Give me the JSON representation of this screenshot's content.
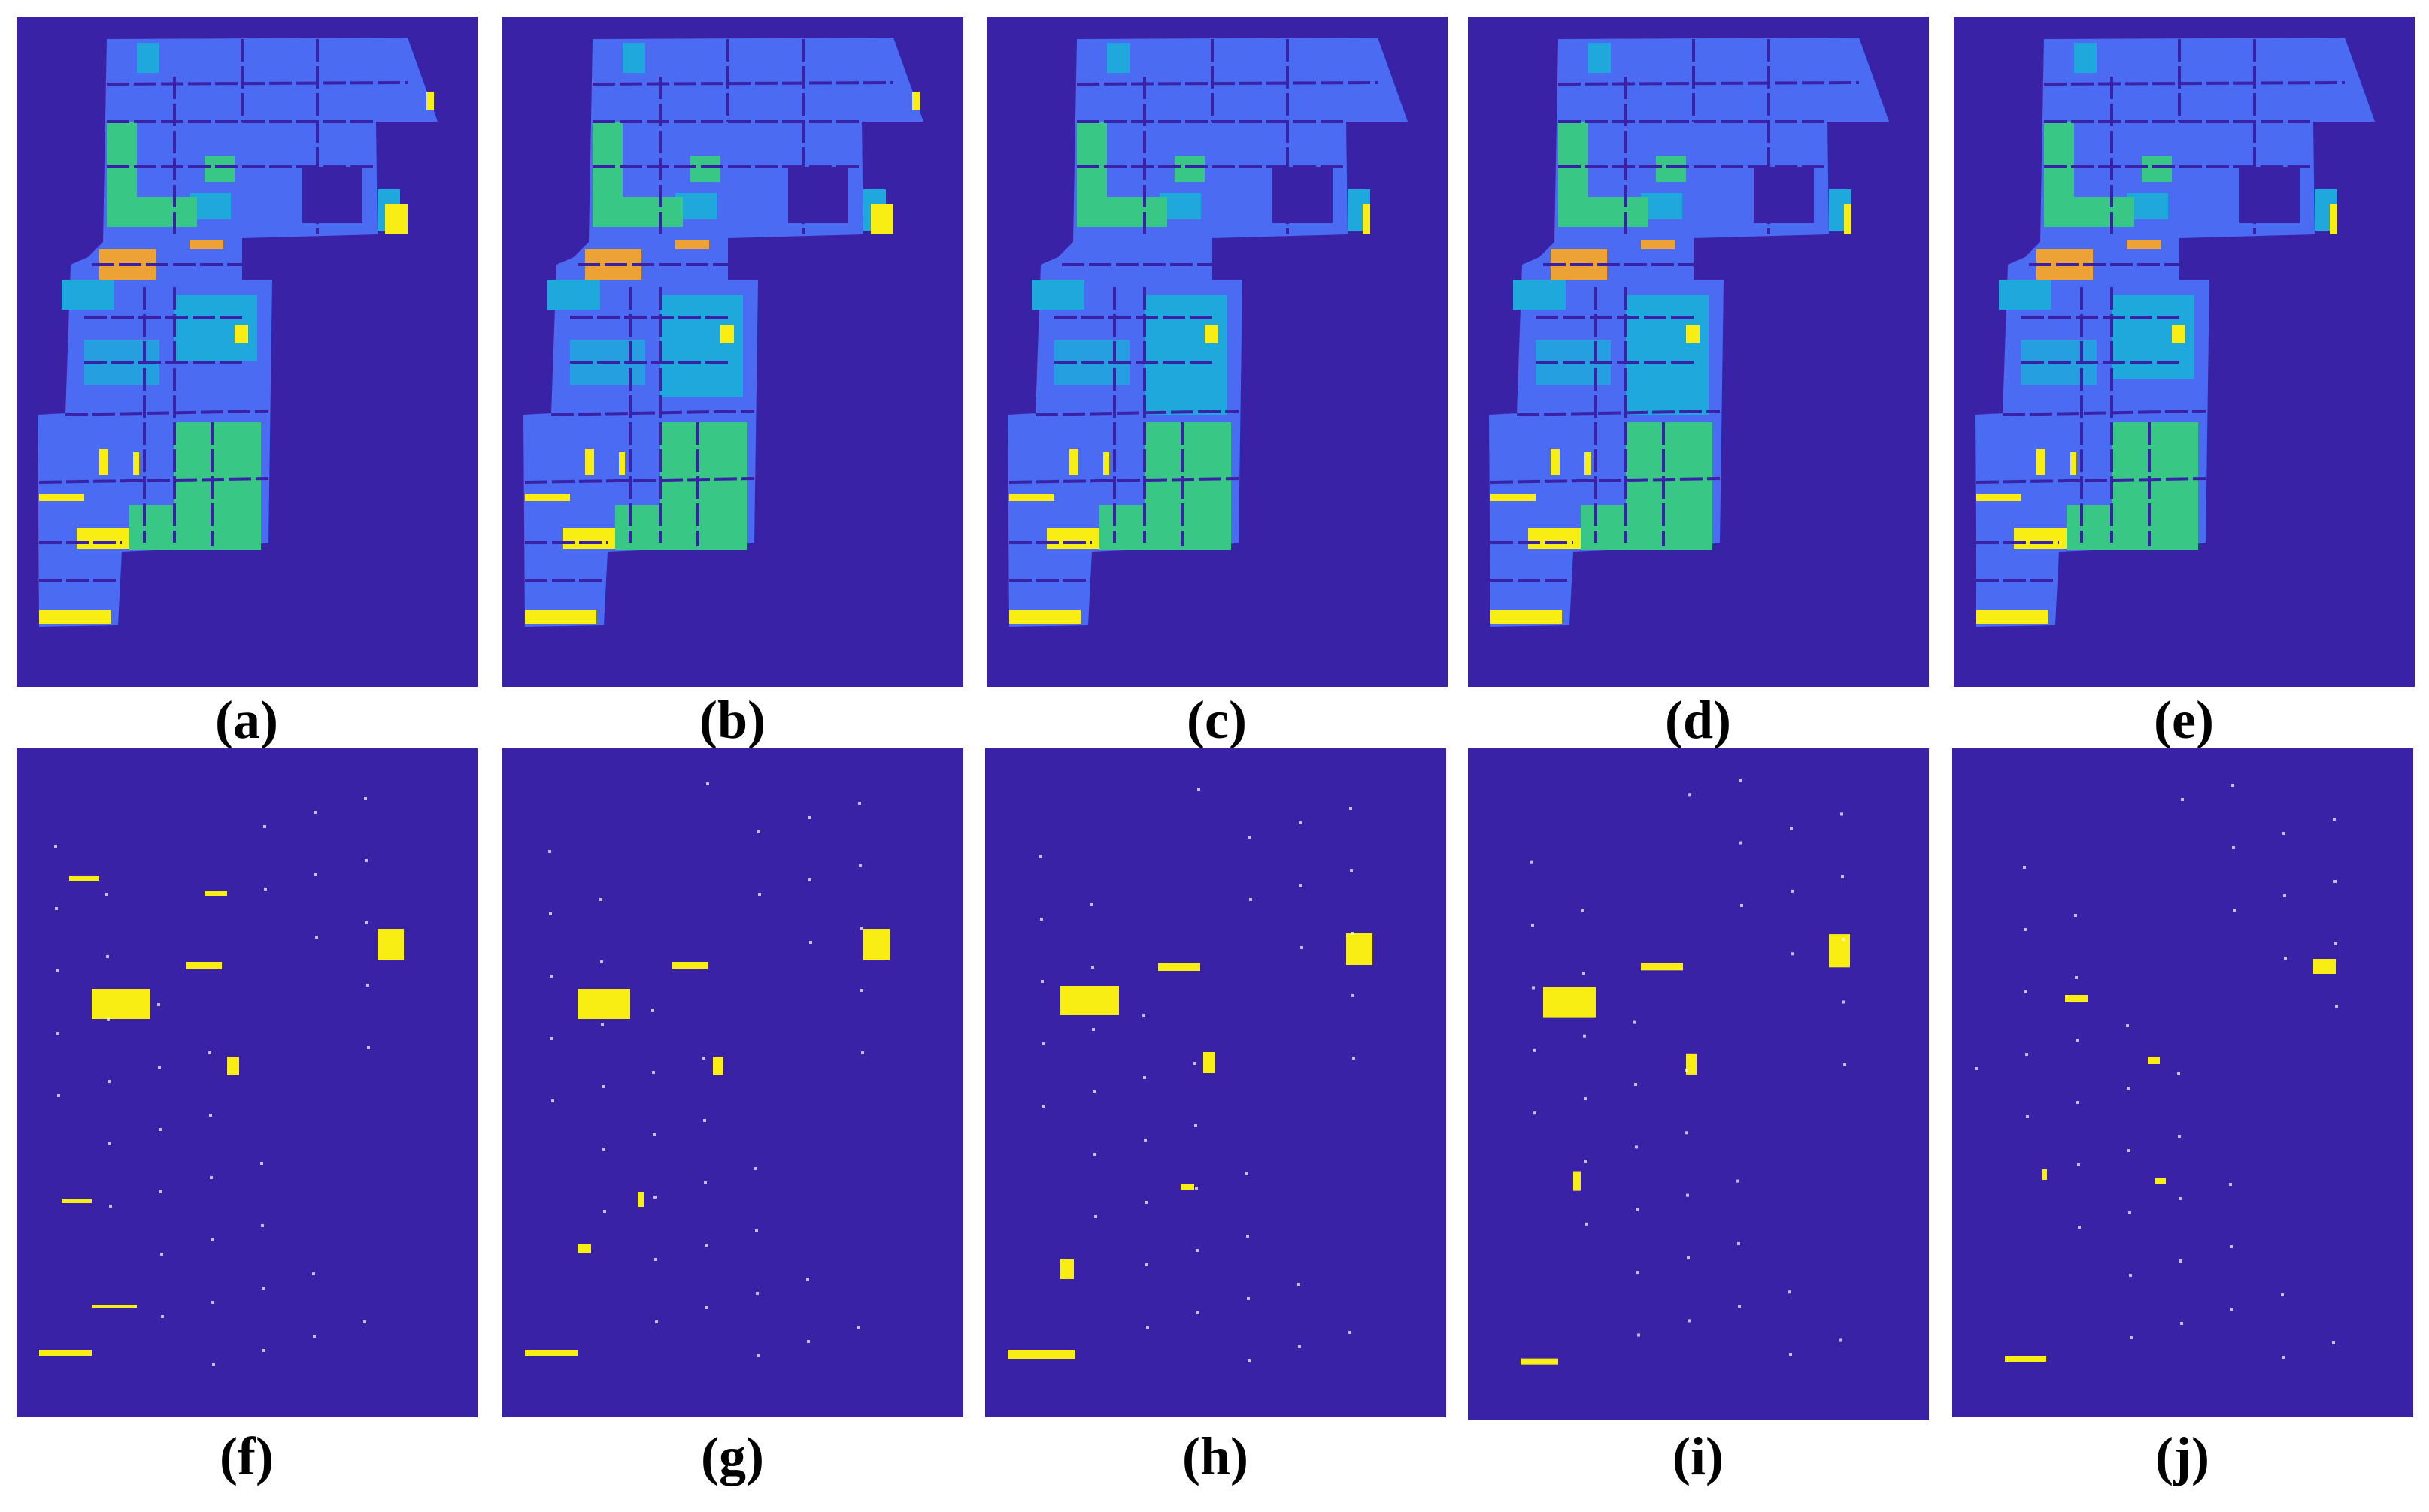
{
  "colors": {
    "background": "#3a22a6",
    "field_blue": "#4a6bf2",
    "cyan": "#1fa8dc",
    "green": "#38c785",
    "yellow": "#f9ee14",
    "orange": "#eca235",
    "white": "#ffffff"
  },
  "top_row": {
    "content": "classification maps",
    "captions": [
      "(a)",
      "(b)",
      "(c)",
      "(d)",
      "(e)"
    ]
  },
  "bottom_row": {
    "content": "binary difference maps",
    "captions": [
      "(f)",
      "(g)",
      "(h)",
      "(i)",
      "(j)"
    ]
  }
}
